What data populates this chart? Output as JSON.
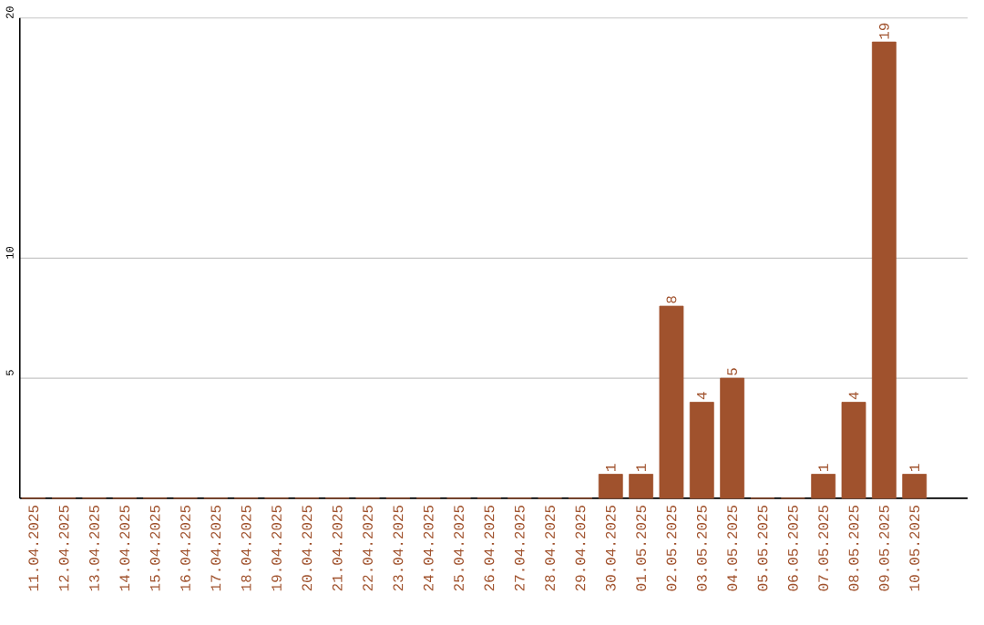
{
  "chart_data": {
    "type": "bar",
    "categories": [
      "11.04.2025",
      "12.04.2025",
      "13.04.2025",
      "14.04.2025",
      "15.04.2025",
      "16.04.2025",
      "17.04.2025",
      "18.04.2025",
      "19.04.2025",
      "20.04.2025",
      "21.04.2025",
      "22.04.2025",
      "23.04.2025",
      "24.04.2025",
      "25.04.2025",
      "26.04.2025",
      "27.04.2025",
      "28.04.2025",
      "29.04.2025",
      "30.04.2025",
      "01.05.2025",
      "02.05.2025",
      "03.05.2025",
      "04.05.2025",
      "05.05.2025",
      "06.05.2025",
      "07.05.2025",
      "08.05.2025",
      "09.05.2025",
      "10.05.2025"
    ],
    "values": [
      0,
      0,
      0,
      0,
      0,
      0,
      0,
      0,
      0,
      0,
      0,
      0,
      0,
      0,
      0,
      0,
      0,
      0,
      0,
      1,
      1,
      8,
      4,
      5,
      0,
      0,
      1,
      4,
      19,
      1
    ],
    "value_labels": [
      null,
      null,
      null,
      null,
      null,
      null,
      null,
      null,
      null,
      null,
      null,
      null,
      null,
      null,
      null,
      null,
      null,
      null,
      null,
      "1",
      "1",
      "8",
      "4",
      "5",
      null,
      null,
      "1",
      "4",
      "19",
      "1"
    ],
    "color": "#a0522d",
    "ylim": [
      0,
      20
    ],
    "yticks": [
      5,
      10,
      20
    ],
    "grid": "y"
  }
}
